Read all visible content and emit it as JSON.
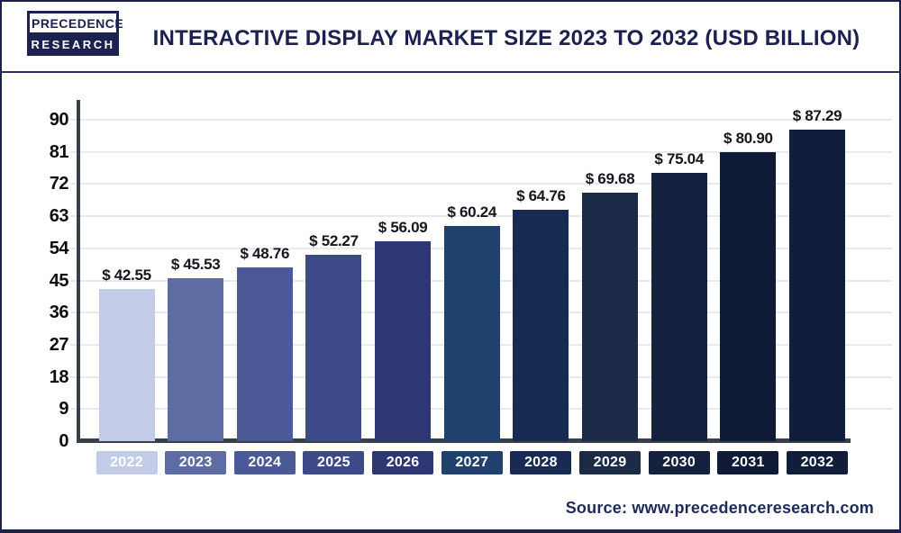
{
  "brand": {
    "line1": "PRECEDENCE",
    "line2": "RESEARCH"
  },
  "header": {
    "title": "INTERACTIVE DISPLAY MARKET SIZE 2023 TO 2032 (USD BILLION)"
  },
  "footer": {
    "source": "Source: www.precedenceresearch.com"
  },
  "chart_data": {
    "type": "bar",
    "title": "Interactive Display Market Size 2023 to 2032 (USD Billion)",
    "categories": [
      "2022",
      "2023",
      "2024",
      "2025",
      "2026",
      "2027",
      "2028",
      "2029",
      "2030",
      "2031",
      "2032"
    ],
    "values": [
      42.55,
      45.53,
      48.76,
      52.27,
      56.09,
      60.24,
      64.76,
      69.68,
      75.04,
      80.9,
      87.29
    ],
    "value_labels": [
      "$ 42.55",
      "$ 45.53",
      "$ 48.76",
      "$ 52.27",
      "$ 56.09",
      "$ 60.24",
      "$ 64.76",
      "$ 69.68",
      "$ 75.04",
      "$ 80.90",
      "$ 87.29"
    ],
    "bar_colors": [
      "#c2cbe8",
      "#5e6ca4",
      "#4b5a96",
      "#3d4a88",
      "#2d3873",
      "#20406e",
      "#172a52",
      "#1a2a47",
      "#14213f",
      "#0e1a36",
      "#101e3c"
    ],
    "y_ticks": [
      0,
      9,
      18,
      27,
      36,
      45,
      54,
      63,
      72,
      81,
      90
    ],
    "ylim": [
      0,
      90
    ],
    "xlabel": "",
    "ylabel": "",
    "grid": true,
    "legend": false,
    "colors": {
      "axis": "#3a3f4c",
      "gridline": "#e9eaf0",
      "tick_label": "#0d0d12",
      "value_label": "#15161f",
      "title": "#1b2150",
      "source": "#1e2a5a",
      "chip_text": "#ffffff",
      "background": "#ffffff"
    }
  }
}
